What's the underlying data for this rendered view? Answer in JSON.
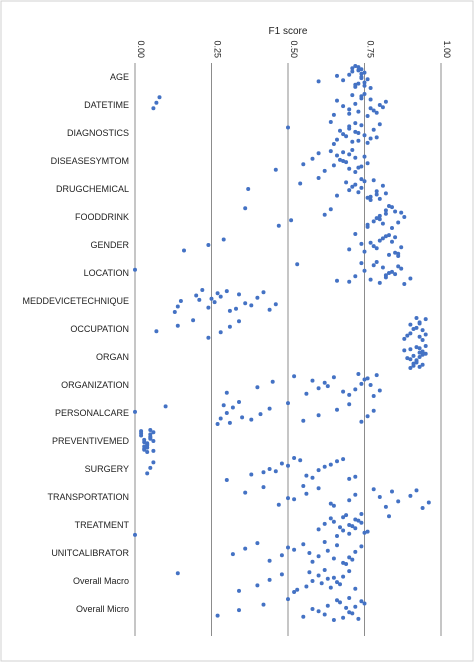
{
  "chart_data": {
    "type": "scatter",
    "title": "F1 score",
    "xlim": [
      0,
      1
    ],
    "x_ticks": [
      "0.00",
      "0.25",
      "0.50",
      "0.75",
      "1.00"
    ],
    "x_tick_values": [
      0,
      0.25,
      0.5,
      0.75,
      1.0
    ],
    "x_axis_position": "top",
    "grid": "vertical",
    "categories": [
      "AGE",
      "DATETIME",
      "DIAGNOSTICS",
      "DISEASESYMTOM",
      "DRUGCHEMICAL",
      "FOODDRINK",
      "GENDER",
      "LOCATION",
      "MEDDEVICETECHNIQUE",
      "OCCUPATION",
      "ORGAN",
      "ORGANIZATION",
      "PERSONALCARE",
      "PREVENTIVEMED",
      "SURGERY",
      "TRANSPORTATION",
      "TREATMENT",
      "UNITCALIBRATOR",
      "Overall Macro",
      "Overall Micro"
    ],
    "point_color": "#4472c4",
    "values": [
      [
        0.72,
        0.73,
        0.74,
        0.75,
        0.73,
        0.72,
        0.76,
        0.74,
        0.71,
        0.75,
        0.68,
        0.7,
        0.74,
        0.72,
        0.6,
        0.66,
        0.73,
        0.77,
        0.75,
        0.74,
        0.71
      ],
      [
        0.06,
        0.07,
        0.08,
        0.65,
        0.7,
        0.72,
        0.74,
        0.76,
        0.78,
        0.8,
        0.77,
        0.75,
        0.73,
        0.68,
        0.66,
        0.71,
        0.79,
        0.81,
        0.82,
        0.74,
        0.7,
        0.77
      ],
      [
        0.5,
        0.64,
        0.66,
        0.68,
        0.7,
        0.72,
        0.73,
        0.75,
        0.78,
        0.8,
        0.71,
        0.69,
        0.67,
        0.74,
        0.76,
        0.79,
        0.72,
        0.7,
        0.65,
        0.77,
        0.73
      ],
      [
        0.46,
        0.55,
        0.58,
        0.6,
        0.62,
        0.65,
        0.67,
        0.7,
        0.72,
        0.74,
        0.68,
        0.66,
        0.71,
        0.73,
        0.69,
        0.75,
        0.64,
        0.7,
        0.76,
        0.72,
        0.68
      ],
      [
        0.37,
        0.54,
        0.6,
        0.66,
        0.7,
        0.72,
        0.74,
        0.77,
        0.79,
        0.81,
        0.78,
        0.76,
        0.73,
        0.71,
        0.75,
        0.8,
        0.82,
        0.74,
        0.69,
        0.77,
        0.79
      ],
      [
        0.36,
        0.47,
        0.51,
        0.62,
        0.64,
        0.76,
        0.78,
        0.8,
        0.82,
        0.84,
        0.86,
        0.88,
        0.85,
        0.83,
        0.81,
        0.79,
        0.87,
        0.84,
        0.76,
        0.8,
        0.82
      ],
      [
        0.16,
        0.24,
        0.29,
        0.72,
        0.75,
        0.78,
        0.8,
        0.83,
        0.85,
        0.87,
        0.84,
        0.82,
        0.86,
        0.79,
        0.77,
        0.85,
        0.83,
        0.7,
        0.74,
        0.81,
        0.86
      ],
      [
        0.0,
        0.53,
        0.7,
        0.72,
        0.75,
        0.78,
        0.8,
        0.82,
        0.84,
        0.86,
        0.88,
        0.9,
        0.83,
        0.81,
        0.79,
        0.77,
        0.85,
        0.87,
        0.74,
        0.66,
        0.82
      ],
      [
        0.13,
        0.14,
        0.15,
        0.2,
        0.22,
        0.24,
        0.26,
        0.28,
        0.3,
        0.33,
        0.36,
        0.4,
        0.42,
        0.44,
        0.46,
        0.25,
        0.27,
        0.31,
        0.38,
        0.21,
        0.34
      ],
      [
        0.07,
        0.14,
        0.19,
        0.24,
        0.28,
        0.31,
        0.34,
        0.88,
        0.9,
        0.92,
        0.93,
        0.94,
        0.95,
        0.91,
        0.93,
        0.92,
        0.89,
        0.94,
        0.9,
        0.95,
        0.93
      ],
      [
        0.88,
        0.9,
        0.92,
        0.93,
        0.94,
        0.95,
        0.91,
        0.89,
        0.93,
        0.92,
        0.94,
        0.9,
        0.95,
        0.93,
        0.91,
        0.92,
        0.94,
        0.9,
        0.93,
        0.92,
        0.91
      ],
      [
        0.3,
        0.4,
        0.45,
        0.52,
        0.56,
        0.6,
        0.62,
        0.65,
        0.7,
        0.72,
        0.74,
        0.76,
        0.78,
        0.8,
        0.77,
        0.75,
        0.73,
        0.68,
        0.63,
        0.58,
        0.79
      ],
      [
        0.0,
        0.1,
        0.27,
        0.28,
        0.3,
        0.32,
        0.34,
        0.38,
        0.41,
        0.44,
        0.5,
        0.55,
        0.6,
        0.66,
        0.7,
        0.74,
        0.76,
        0.78,
        0.29,
        0.31,
        0.35
      ],
      [
        0.02,
        0.03,
        0.04,
        0.05,
        0.06,
        0.03,
        0.04,
        0.05,
        0.02,
        0.06,
        0.04,
        0.03,
        0.05,
        0.04,
        0.03,
        0.06,
        0.02,
        0.05,
        0.04,
        0.03,
        0.05
      ],
      [
        0.04,
        0.05,
        0.06,
        0.3,
        0.38,
        0.44,
        0.48,
        0.52,
        0.56,
        0.6,
        0.64,
        0.68,
        0.72,
        0.46,
        0.5,
        0.54,
        0.58,
        0.42,
        0.62,
        0.66,
        0.7
      ],
      [
        0.36,
        0.42,
        0.47,
        0.52,
        0.56,
        0.6,
        0.65,
        0.7,
        0.72,
        0.78,
        0.82,
        0.86,
        0.9,
        0.92,
        0.94,
        0.96,
        0.8,
        0.84,
        0.55,
        0.64,
        0.5
      ],
      [
        0.0,
        0.6,
        0.62,
        0.64,
        0.66,
        0.68,
        0.7,
        0.72,
        0.74,
        0.76,
        0.71,
        0.73,
        0.69,
        0.75,
        0.67,
        0.65,
        0.83,
        0.7,
        0.72,
        0.74,
        0.68
      ],
      [
        0.32,
        0.36,
        0.4,
        0.44,
        0.48,
        0.52,
        0.55,
        0.58,
        0.6,
        0.63,
        0.66,
        0.68,
        0.7,
        0.72,
        0.74,
        0.69,
        0.65,
        0.57,
        0.5,
        0.62,
        0.71
      ],
      [
        0.14,
        0.34,
        0.4,
        0.44,
        0.48,
        0.52,
        0.56,
        0.58,
        0.6,
        0.62,
        0.64,
        0.66,
        0.68,
        0.7,
        0.72,
        0.61,
        0.65,
        0.57,
        0.53,
        0.67,
        0.63
      ],
      [
        0.27,
        0.34,
        0.42,
        0.5,
        0.55,
        0.6,
        0.63,
        0.66,
        0.68,
        0.7,
        0.72,
        0.74,
        0.73,
        0.71,
        0.69,
        0.67,
        0.65,
        0.62,
        0.58,
        0.75,
        0.7
      ]
    ]
  }
}
